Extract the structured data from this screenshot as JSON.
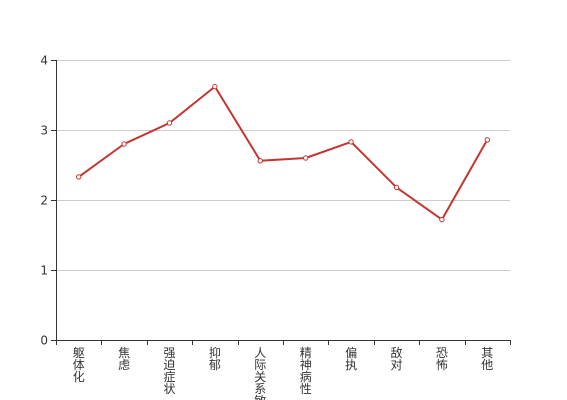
{
  "chart_data": {
    "type": "line",
    "categories": [
      "躯体化",
      "焦虑",
      "强迫症状",
      "抑郁",
      "人际关系敏感",
      "精神病性",
      "偏执",
      "敌对",
      "恐怖",
      "其他"
    ],
    "series": [
      {
        "values": [
          2.33,
          2.8,
          3.1,
          3.62,
          2.56,
          2.6,
          2.83,
          2.18,
          1.72,
          2.86
        ]
      }
    ],
    "title": "",
    "xlabel": "",
    "ylabel": "",
    "ylim": [
      0,
      4
    ],
    "yticks": [
      "0",
      "1",
      "2",
      "3",
      "4"
    ],
    "grid": true,
    "colors": {
      "series": "#c23531",
      "axis": "#333333",
      "grid": "#cccccc"
    }
  }
}
